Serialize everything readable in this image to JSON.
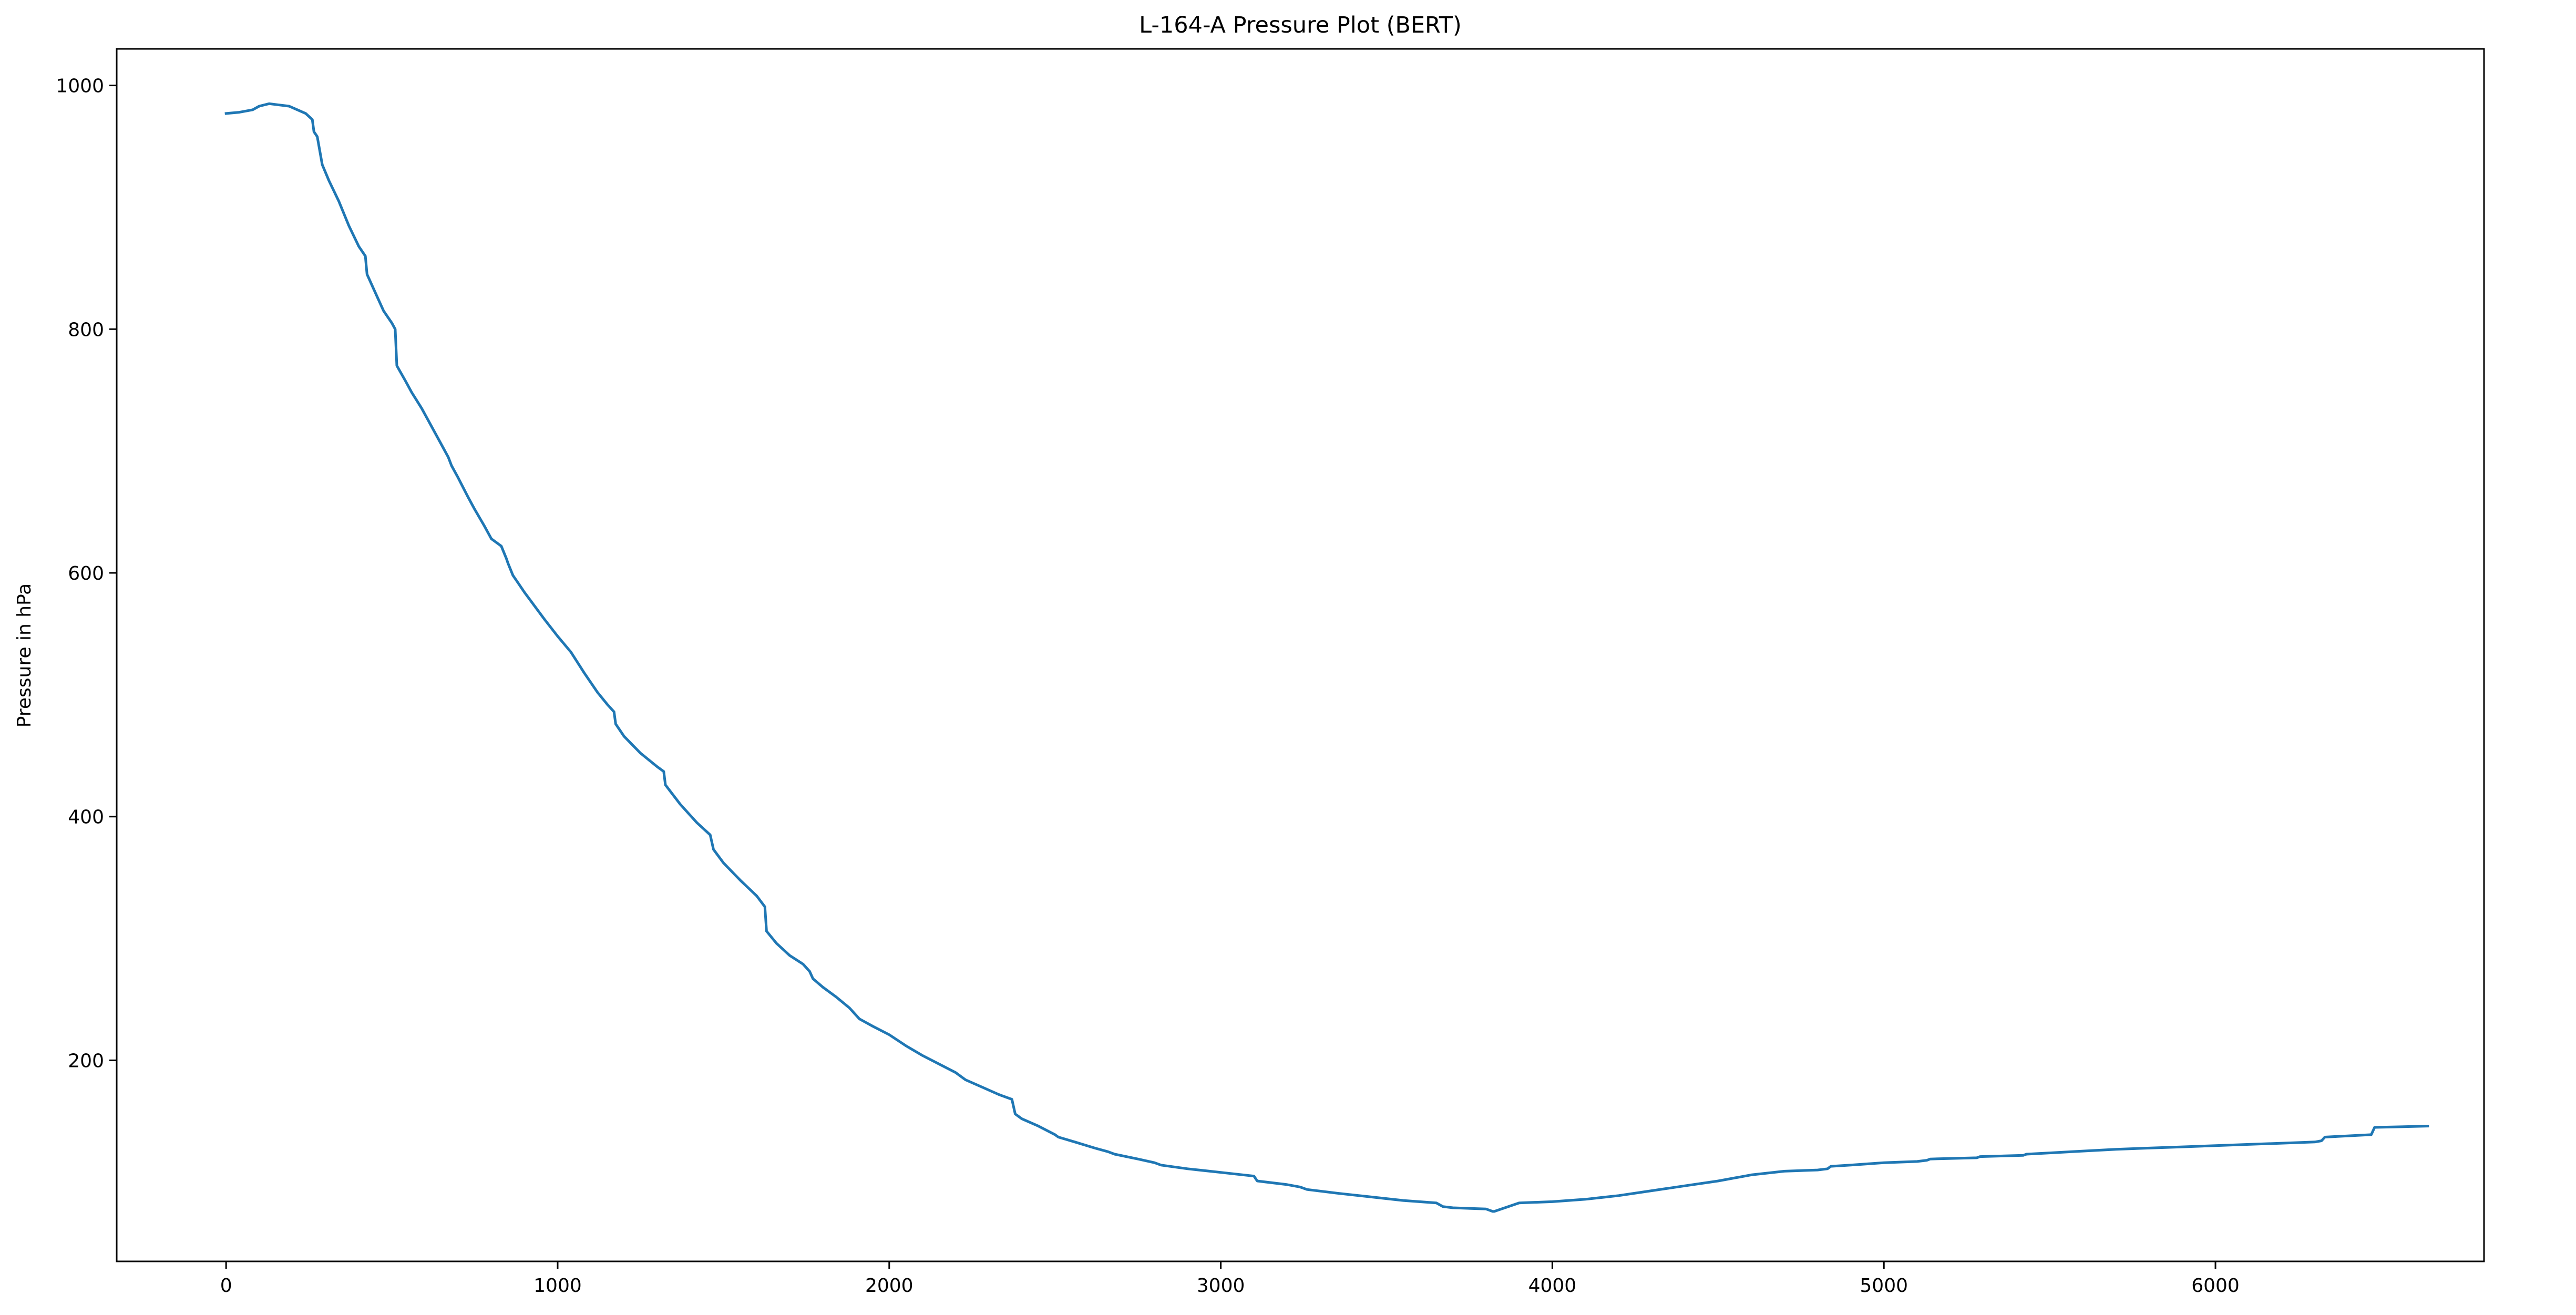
{
  "chart_data": {
    "type": "line",
    "title": "L-164-A Pressure Plot (BERT)",
    "xlabel": "",
    "ylabel": "Pressure in hPa",
    "xlim": [
      -330,
      6810
    ],
    "ylim": [
      35,
      1030
    ],
    "xticks": [
      0,
      1000,
      2000,
      3000,
      4000,
      5000,
      6000
    ],
    "yticks": [
      200,
      400,
      600,
      800,
      1000
    ],
    "grid": false,
    "legend": "none",
    "color": "#1f77b4",
    "series": [
      {
        "x": [
          0,
          40,
          80,
          100,
          130,
          160,
          190,
          215,
          240,
          260,
          265,
          275,
          290,
          310,
          340,
          370,
          400,
          420,
          425,
          450,
          475,
          500,
          510,
          515,
          540,
          560,
          590,
          620,
          650,
          670,
          680,
          700,
          730,
          750,
          780,
          800,
          830,
          845,
          850,
          865,
          880,
          900,
          930,
          960,
          1000,
          1040,
          1080,
          1120,
          1150,
          1170,
          1175,
          1200,
          1250,
          1300,
          1320,
          1325,
          1370,
          1420,
          1460,
          1470,
          1500,
          1550,
          1600,
          1625,
          1630,
          1660,
          1700,
          1740,
          1760,
          1770,
          1800,
          1840,
          1880,
          1900,
          1910,
          1950,
          2000,
          2050,
          2100,
          2150,
          2200,
          2220,
          2230,
          2280,
          2330,
          2370,
          2380,
          2400,
          2450,
          2500,
          2510,
          2560,
          2620,
          2660,
          2680,
          2750,
          2800,
          2820,
          2900,
          3000,
          3100,
          3110,
          3200,
          3240,
          3260,
          3350,
          3450,
          3550,
          3650,
          3670,
          3700,
          3800,
          3820,
          3825,
          3900,
          4000,
          4100,
          4200,
          4300,
          4400,
          4500,
          4600,
          4700,
          4800,
          4830,
          4840,
          4900,
          5000,
          5100,
          5130,
          5140,
          5280,
          5290,
          5420,
          5430,
          5500,
          5700,
          5900,
          6000,
          6100,
          6300,
          6320,
          6330,
          6470,
          6480,
          6640
        ],
        "y": [
          977,
          978,
          980,
          983,
          985,
          984,
          983,
          980,
          977,
          972,
          962,
          958,
          935,
          922,
          905,
          885,
          868,
          860,
          845,
          830,
          815,
          805,
          800,
          770,
          758,
          748,
          735,
          720,
          705,
          695,
          688,
          678,
          662,
          652,
          638,
          628,
          622,
          612,
          608,
          598,
          592,
          584,
          573,
          562,
          548,
          535,
          518,
          502,
          492,
          486,
          476,
          466,
          452,
          441,
          437,
          426,
          410,
          395,
          385,
          373,
          362,
          348,
          335,
          326,
          306,
          296,
          286,
          279,
          273,
          267,
          260,
          252,
          243,
          237,
          234,
          228,
          221,
          212,
          204,
          197,
          190,
          186,
          184,
          178,
          172,
          168,
          156,
          152,
          146,
          139,
          137,
          133,
          128,
          125,
          123,
          119,
          116,
          114,
          111,
          108,
          105,
          101,
          98,
          96,
          94,
          91,
          88,
          85,
          83,
          80,
          79,
          78,
          76,
          76,
          83,
          84,
          86,
          89,
          93,
          97,
          101,
          106,
          109,
          110,
          111,
          113,
          114,
          116,
          117,
          118,
          119,
          120,
          121,
          122,
          123,
          124,
          127,
          129,
          130,
          131,
          133,
          134,
          137,
          139,
          145,
          146
        ]
      }
    ]
  }
}
